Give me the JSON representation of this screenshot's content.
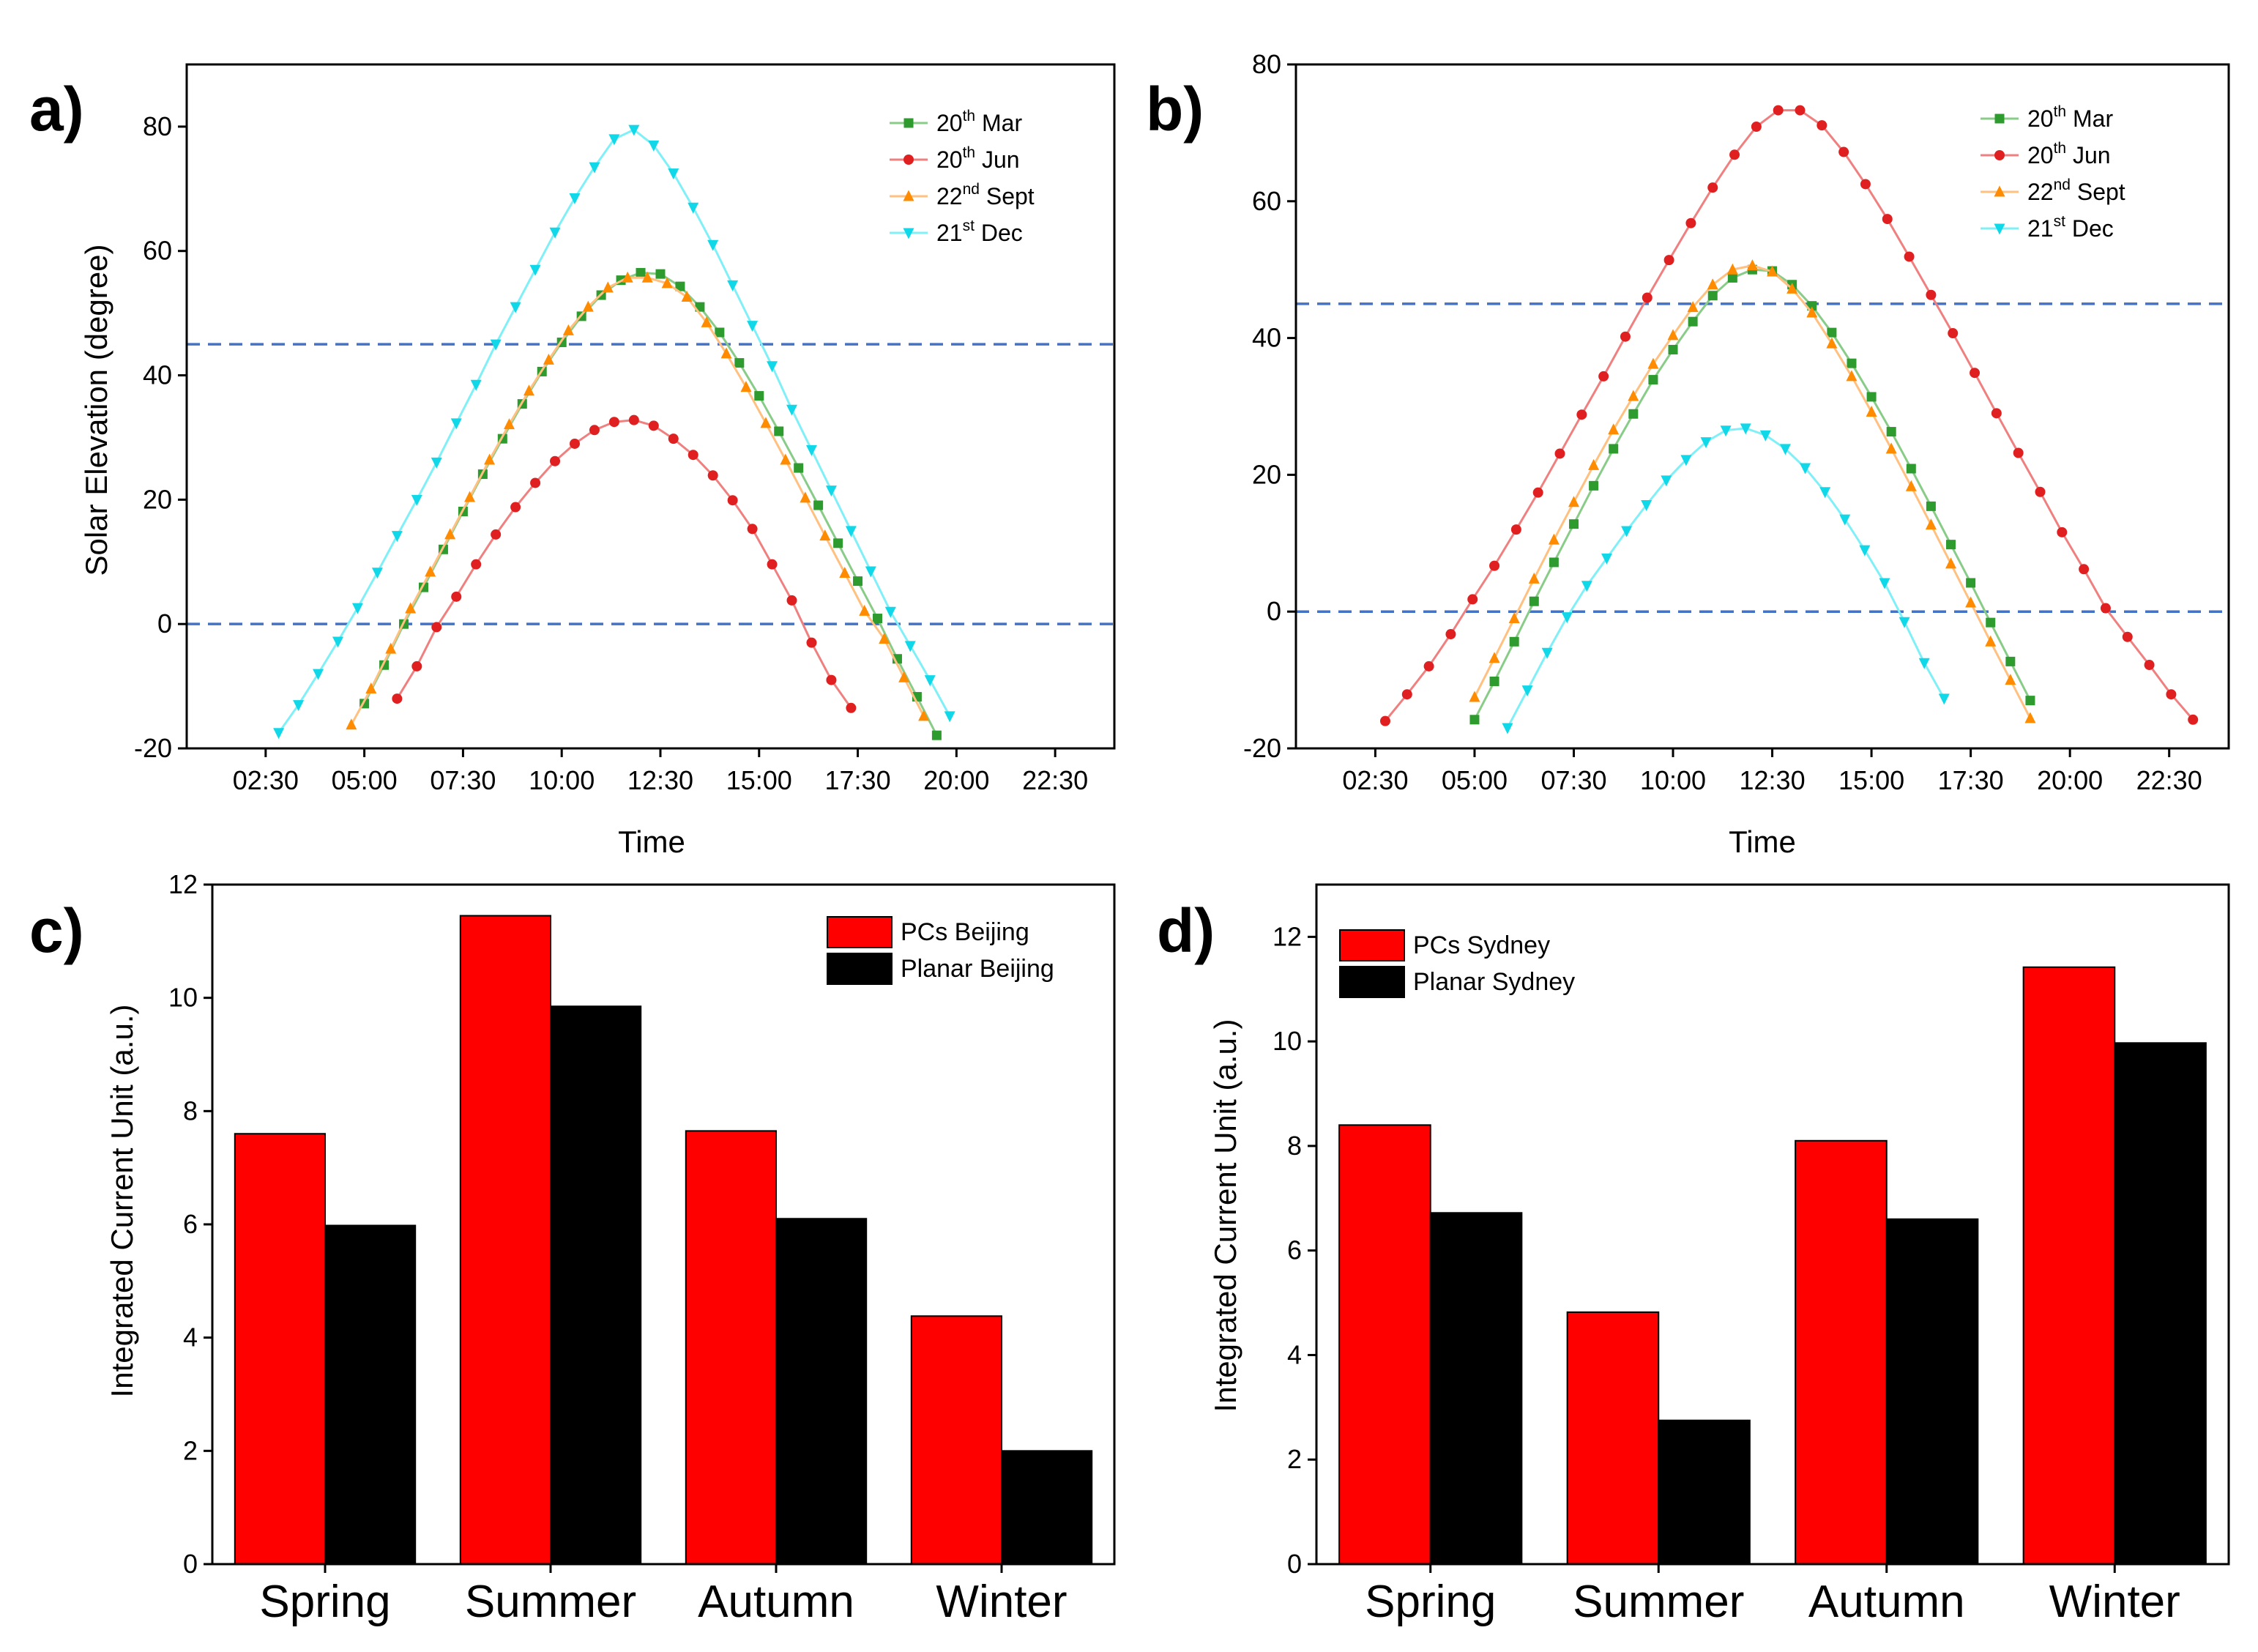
{
  "chart_data": [
    {
      "panel": "a)",
      "type": "line",
      "title": "",
      "xlabel": "Time",
      "ylabel": "Solar Elevation (degree)",
      "xlim": [
        0.5,
        24.0
      ],
      "ylim": [
        -20,
        90
      ],
      "xticks": [
        2.5,
        5.0,
        7.5,
        10.0,
        12.5,
        15.0,
        17.5,
        20.0,
        22.5
      ],
      "xtick_labels": [
        "02:30",
        "05:00",
        "07:30",
        "10:00",
        "12:30",
        "15:00",
        "17:30",
        "20:00",
        "22:30"
      ],
      "yticks": [
        -20,
        0,
        20,
        40,
        60,
        80
      ],
      "ytick_labels": [
        "-20",
        "0",
        "20",
        "40",
        "60",
        "80"
      ],
      "ref_lines": [
        0,
        45
      ],
      "legend_position": "top-right",
      "series": [
        {
          "name": "20th Mar",
          "legend_base": "20",
          "legend_sup": "th",
          "legend_rest": " Mar",
          "color": "#2e9b2e",
          "line_color": "#88cc88",
          "marker": "square",
          "x_start": 5.0,
          "x_step": 0.5,
          "values": [
            -12.8,
            -6.6,
            0.0,
            5.9,
            12.0,
            18.1,
            24.1,
            29.8,
            35.4,
            40.6,
            45.3,
            49.5,
            52.9,
            55.3,
            56.5,
            56.3,
            54.3,
            51.0,
            46.9,
            42.0,
            36.7,
            31.0,
            25.1,
            19.1,
            13.0,
            6.9,
            0.9,
            -5.6,
            -11.7,
            -17.9
          ]
        },
        {
          "name": "20th Jun",
          "legend_base": "20",
          "legend_sup": "th",
          "legend_rest": " Jun",
          "color": "#e02020",
          "line_color": "#f08080",
          "marker": "circle",
          "x_start": 5.83,
          "x_step": 0.5,
          "values": [
            -12.0,
            -6.8,
            -0.5,
            4.4,
            9.6,
            14.4,
            18.8,
            22.7,
            26.2,
            29.0,
            31.2,
            32.5,
            32.8,
            31.9,
            29.8,
            27.2,
            23.9,
            19.9,
            15.3,
            9.6,
            3.8,
            -3.0,
            -9.0,
            -13.5
          ]
        },
        {
          "name": "22nd Sept",
          "legend_base": "22",
          "legend_sup": "nd",
          "legend_rest": " Sept",
          "color": "#ff8c00",
          "line_color": "#ffc080",
          "marker": "triangle-up",
          "x_start": 4.67,
          "x_step": 0.5,
          "values": [
            -16.2,
            -10.4,
            -4.0,
            2.5,
            8.4,
            14.4,
            20.4,
            26.4,
            32.1,
            37.5,
            42.5,
            47.2,
            51.0,
            54.1,
            55.7,
            55.7,
            54.8,
            52.6,
            48.5,
            43.5,
            38.1,
            32.3,
            26.4,
            20.3,
            14.2,
            8.2,
            2.1,
            -2.4,
            -8.6,
            -14.8
          ]
        },
        {
          "name": "21st Dec",
          "legend_base": "21",
          "legend_sup": "st",
          "legend_rest": " Dec",
          "color": "#10d8e8",
          "line_color": "#80f0f8",
          "marker": "triangle-down",
          "x_start": 2.83,
          "x_step": 0.5,
          "values": [
            -17.5,
            -13.0,
            -8.0,
            -2.8,
            2.6,
            8.3,
            14.2,
            20.0,
            26.0,
            32.3,
            38.5,
            45.0,
            51.0,
            57.0,
            63.0,
            68.5,
            73.5,
            78.0,
            79.5,
            77.0,
            72.5,
            67.0,
            61.0,
            54.5,
            48.0,
            41.5,
            34.5,
            28.0,
            21.5,
            15.0,
            8.5,
            2.0,
            -3.5,
            -9.0,
            -14.8
          ]
        }
      ]
    },
    {
      "panel": "b)",
      "type": "line",
      "title": "",
      "xlabel": "Time",
      "ylabel": "",
      "xlim": [
        0.5,
        24.0
      ],
      "ylim": [
        -20,
        80
      ],
      "xticks": [
        2.5,
        5.0,
        7.5,
        10.0,
        12.5,
        15.0,
        17.5,
        20.0,
        22.5
      ],
      "xtick_labels": [
        "02:30",
        "05:00",
        "07:30",
        "10:00",
        "12:30",
        "15:00",
        "17:30",
        "20:00",
        "22:30"
      ],
      "yticks": [
        -20,
        0,
        20,
        40,
        60,
        80
      ],
      "ytick_labels": [
        "-20",
        "0",
        "20",
        "40",
        "60",
        "80"
      ],
      "ref_lines": [
        0,
        45
      ],
      "legend_position": "top-right",
      "series": [
        {
          "name": "20th Mar",
          "legend_base": "20",
          "legend_sup": "th",
          "legend_rest": " Mar",
          "color": "#2e9b2e",
          "line_color": "#88cc88",
          "marker": "square",
          "x_start": 5.0,
          "x_step": 0.5,
          "values": [
            -15.8,
            -10.2,
            -4.4,
            1.5,
            7.2,
            12.8,
            18.4,
            23.8,
            28.9,
            33.9,
            38.3,
            42.4,
            46.2,
            48.8,
            50.0,
            49.8,
            47.8,
            44.7,
            40.8,
            36.3,
            31.4,
            26.3,
            20.9,
            15.4,
            9.8,
            4.2,
            -1.6,
            -7.3,
            -13.0
          ]
        },
        {
          "name": "20th Jun",
          "legend_base": "20",
          "legend_sup": "th",
          "legend_rest": " Jun",
          "color": "#e02020",
          "line_color": "#f08080",
          "marker": "circle",
          "x_start": 2.75,
          "x_step": 0.55,
          "values": [
            -16.0,
            -12.1,
            -8.0,
            -3.3,
            1.8,
            6.7,
            12.0,
            17.4,
            23.1,
            28.8,
            34.4,
            40.2,
            45.9,
            51.4,
            56.8,
            62.0,
            66.8,
            70.9,
            73.3,
            73.3,
            71.1,
            67.2,
            62.5,
            57.4,
            51.9,
            46.3,
            40.7,
            34.9,
            29.0,
            23.2,
            17.5,
            11.6,
            6.2,
            0.5,
            -3.7,
            -7.8,
            -12.1,
            -15.8
          ]
        },
        {
          "name": "22nd Sept",
          "legend_base": "22",
          "legend_sup": "nd",
          "legend_rest": " Sept",
          "color": "#ff8c00",
          "line_color": "#ffc080",
          "marker": "triangle-up",
          "x_start": 5.0,
          "x_step": 0.5,
          "values": [
            -12.5,
            -6.8,
            -1.0,
            4.8,
            10.5,
            16.0,
            21.4,
            26.6,
            31.5,
            36.2,
            40.4,
            44.5,
            47.8,
            50.0,
            50.6,
            49.7,
            47.2,
            43.7,
            39.2,
            34.4,
            29.2,
            23.8,
            18.3,
            12.7,
            7.0,
            1.3,
            -4.4,
            -10.0,
            -15.6
          ]
        },
        {
          "name": "21st Dec",
          "legend_base": "21",
          "legend_sup": "st",
          "legend_rest": " Dec",
          "color": "#10d8e8",
          "line_color": "#80f0f8",
          "marker": "triangle-down",
          "x_start": 5.83,
          "x_step": 0.5,
          "values": [
            -17.0,
            -11.5,
            -6.0,
            -0.8,
            3.8,
            7.8,
            11.8,
            15.6,
            19.2,
            22.2,
            24.8,
            26.5,
            26.8,
            25.8,
            23.8,
            21.0,
            17.5,
            13.5,
            9.0,
            4.2,
            -1.5,
            -7.5,
            -12.7
          ]
        }
      ]
    },
    {
      "panel": "c)",
      "type": "bar",
      "title": "",
      "xlabel": "",
      "ylabel": "Integrated Current Unit (a.u.)",
      "ylim": [
        0,
        12
      ],
      "yticks": [
        0,
        2,
        4,
        6,
        8,
        10,
        12
      ],
      "ytick_labels": [
        "0",
        "2",
        "4",
        "6",
        "8",
        "10",
        "12"
      ],
      "categories": [
        "Spring",
        "Summer",
        "Autumn",
        "Winter"
      ],
      "legend_position": "top-right",
      "series": [
        {
          "name": "PCs Beijing",
          "color": "#ff0000",
          "values": [
            7.6,
            11.45,
            7.65,
            4.38
          ]
        },
        {
          "name": "Planar Beijing",
          "color": "#000000",
          "values": [
            5.98,
            9.85,
            6.1,
            2.0
          ]
        }
      ]
    },
    {
      "panel": "d)",
      "type": "bar",
      "title": "",
      "xlabel": "",
      "ylabel": "Integrated Current Unit (a.u.)",
      "ylim": [
        0,
        13
      ],
      "yticks": [
        0,
        2,
        4,
        6,
        8,
        10,
        12
      ],
      "ytick_labels": [
        "0",
        "2",
        "4",
        "6",
        "8",
        "10",
        "12"
      ],
      "categories": [
        "Spring",
        "Summer",
        "Autumn",
        "Winter"
      ],
      "legend_position": "top-left",
      "series": [
        {
          "name": "PCs Sydney",
          "color": "#ff0000",
          "values": [
            8.4,
            4.82,
            8.1,
            11.42
          ]
        },
        {
          "name": "Planar Sydney",
          "color": "#000000",
          "values": [
            6.72,
            2.75,
            6.6,
            9.97
          ]
        }
      ]
    }
  ]
}
